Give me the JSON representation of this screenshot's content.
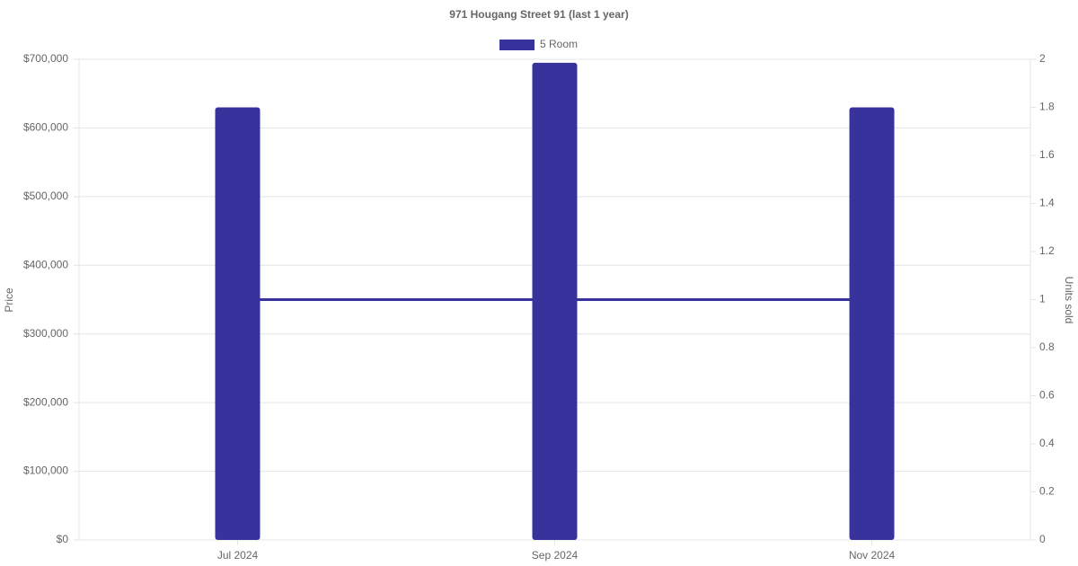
{
  "chart_data": {
    "type": "bar-line",
    "title": "971 Hougang Street 91 (last 1 year)",
    "categories": [
      "Jul 2024",
      "Sep 2024",
      "Nov 2024"
    ],
    "series": [
      {
        "name": "5 Room",
        "type": "bar",
        "color": "#38339c",
        "values": [
          630000,
          695000,
          630000
        ]
      },
      {
        "type": "line",
        "axis": "y2",
        "color": "#38339c",
        "values": [
          1,
          1,
          1
        ]
      }
    ],
    "y_label": "Price",
    "y2_label": "Units sold",
    "ylim": [
      0,
      700000
    ],
    "yticks": [
      {
        "value": 0,
        "label": "$0"
      },
      {
        "value": 100000,
        "label": "$100,000"
      },
      {
        "value": 200000,
        "label": "$200,000"
      },
      {
        "value": 300000,
        "label": "$300,000"
      },
      {
        "value": 400000,
        "label": "$400,000"
      },
      {
        "value": 500000,
        "label": "$500,000"
      },
      {
        "value": 600000,
        "label": "$600,000"
      },
      {
        "value": 700000,
        "label": "$700,000"
      }
    ],
    "y2lim": [
      0,
      2
    ],
    "y2ticks": [
      0,
      0.2,
      0.4,
      0.6,
      0.8,
      1,
      1.2,
      1.4,
      1.6,
      1.8,
      2
    ],
    "grid": true,
    "legend": "top"
  }
}
